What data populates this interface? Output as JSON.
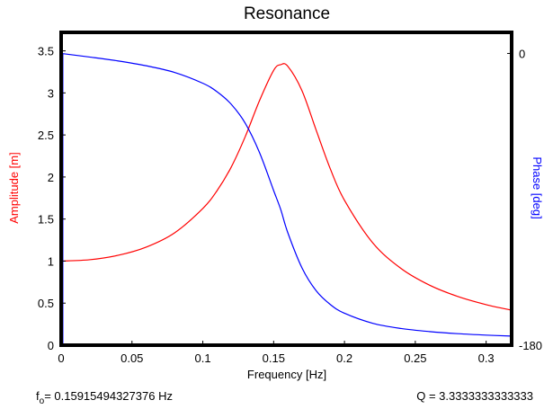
{
  "chart_data": {
    "type": "line",
    "title": "Resonance",
    "xlabel": "Frequency [Hz]",
    "ylabel_left": "Amplitude [m]",
    "ylabel_right": "Phase [deg]",
    "xlim": [
      0,
      0.318
    ],
    "ylim_left": [
      0,
      3.72
    ],
    "ylim_right": [
      -180,
      13
    ],
    "x_ticks": [
      "0",
      "0.05",
      "0.1",
      "0.15",
      "0.2",
      "0.25",
      "0.3"
    ],
    "x_tick_values": [
      0,
      0.05,
      0.1,
      0.15,
      0.2,
      0.25,
      0.3
    ],
    "y_left_ticks": [
      "0",
      "0.5",
      "1",
      "1.5",
      "2",
      "2.5",
      "3",
      "3.5"
    ],
    "y_left_tick_values": [
      0,
      0.5,
      1,
      1.5,
      2,
      2.5,
      3,
      3.5
    ],
    "y_right_ticks": [
      "0",
      "-180"
    ],
    "y_right_tick_values": [
      0,
      -180
    ],
    "series": [
      {
        "name": "Amplitude",
        "axis": "left",
        "color": "#ff0000",
        "x": [
          0,
          0.02,
          0.04,
          0.06,
          0.08,
          0.1,
          0.11,
          0.12,
          0.13,
          0.14,
          0.15,
          0.155,
          0.16,
          0.17,
          0.18,
          0.19,
          0.2,
          0.22,
          0.24,
          0.26,
          0.28,
          0.3,
          0.318
        ],
        "values": [
          1.0,
          1.016,
          1.068,
          1.166,
          1.335,
          1.626,
          1.836,
          2.116,
          2.482,
          2.908,
          3.268,
          3.336,
          3.316,
          3.027,
          2.558,
          2.097,
          1.723,
          1.216,
          0.911,
          0.714,
          0.579,
          0.482,
          0.416
        ]
      },
      {
        "name": "Phase",
        "axis": "right",
        "color": "#0000ff",
        "x": [
          0,
          0.02,
          0.04,
          0.06,
          0.08,
          0.1,
          0.11,
          0.12,
          0.13,
          0.14,
          0.15,
          0.155,
          0.16,
          0.17,
          0.18,
          0.19,
          0.2,
          0.22,
          0.24,
          0.26,
          0.28,
          0.3,
          0.318
        ],
        "values": [
          0,
          -2.2,
          -4.6,
          -7.6,
          -11.7,
          -18.4,
          -23.6,
          -31.3,
          -43.1,
          -61.1,
          -84.6,
          -96.3,
          -110.6,
          -132.3,
          -146.4,
          -154.9,
          -160.3,
          -166.5,
          -169.7,
          -171.6,
          -172.9,
          -173.8,
          -174.4
        ]
      }
    ],
    "grid": false,
    "legend": "none"
  },
  "footer": {
    "f0_prefix": "f",
    "f0_sub": "o",
    "f0_value": "= 0.15915494327376 Hz",
    "q_value": "Q = 3.3333333333333"
  }
}
